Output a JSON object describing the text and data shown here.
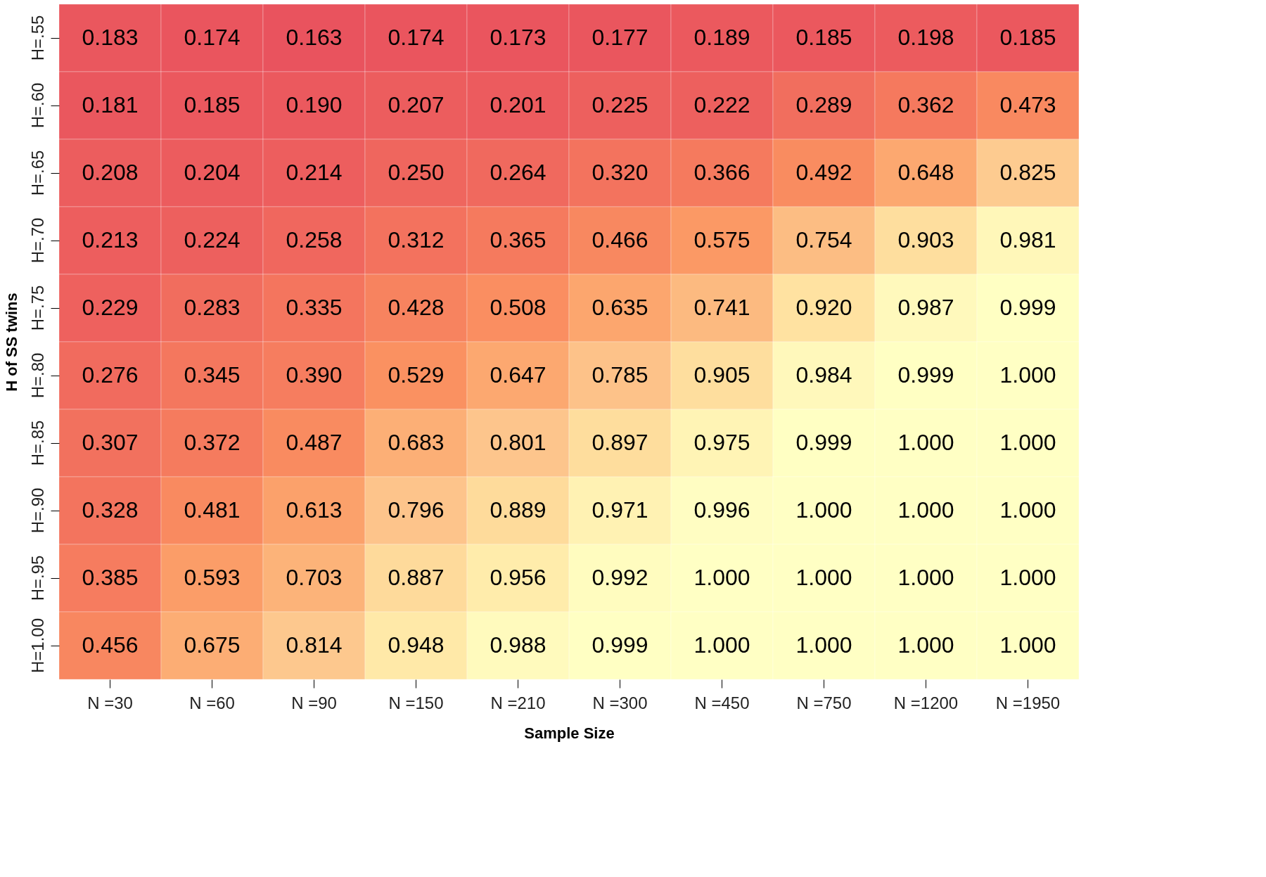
{
  "chart_data": {
    "type": "heatmap",
    "xlabel": "Sample Size",
    "ylabel": "H of SS twins",
    "categories": [
      "N =30",
      "N =60",
      "N =90",
      "N =150",
      "N =210",
      "N =300",
      "N =450",
      "N =750",
      "N =1200",
      "N =1950"
    ],
    "y_categories": [
      "H=.55",
      "H=.60",
      "H=.65",
      "H=.70",
      "H=.75",
      "H=.80",
      "H=.85",
      "H=.90",
      "H=.95",
      "H=1.00"
    ],
    "cells": [
      [
        0.183,
        0.174,
        0.163,
        0.174,
        0.173,
        0.177,
        0.189,
        0.185,
        0.198,
        0.185
      ],
      [
        0.181,
        0.185,
        0.19,
        0.207,
        0.201,
        0.225,
        0.222,
        0.289,
        0.362,
        0.473
      ],
      [
        0.208,
        0.204,
        0.214,
        0.25,
        0.264,
        0.32,
        0.366,
        0.492,
        0.648,
        0.825
      ],
      [
        0.213,
        0.224,
        0.258,
        0.312,
        0.365,
        0.466,
        0.575,
        0.754,
        0.903,
        0.981
      ],
      [
        0.229,
        0.283,
        0.335,
        0.428,
        0.508,
        0.635,
        0.741,
        0.92,
        0.987,
        0.999
      ],
      [
        0.276,
        0.345,
        0.39,
        0.529,
        0.647,
        0.785,
        0.905,
        0.984,
        0.999,
        1.0
      ],
      [
        0.307,
        0.372,
        0.487,
        0.683,
        0.801,
        0.897,
        0.975,
        0.999,
        1.0,
        1.0
      ],
      [
        0.328,
        0.481,
        0.613,
        0.796,
        0.889,
        0.971,
        0.996,
        1.0,
        1.0,
        1.0
      ],
      [
        0.385,
        0.593,
        0.703,
        0.887,
        0.956,
        0.992,
        1.0,
        1.0,
        1.0,
        1.0
      ],
      [
        0.456,
        0.675,
        0.814,
        0.948,
        0.988,
        0.999,
        1.0,
        1.0,
        1.0,
        1.0
      ]
    ],
    "cell_labels": [
      [
        "0.183",
        "0.174",
        "0.163",
        "0.174",
        "0.173",
        "0.177",
        "0.189",
        "0.185",
        "0.198",
        "0.185"
      ],
      [
        "0.181",
        "0.185",
        "0.190",
        "0.207",
        "0.201",
        "0.225",
        "0.222",
        "0.289",
        "0.362",
        "0.473"
      ],
      [
        "0.208",
        "0.204",
        "0.214",
        "0.250",
        "0.264",
        "0.320",
        "0.366",
        "0.492",
        "0.648",
        "0.825"
      ],
      [
        "0.213",
        "0.224",
        "0.258",
        "0.312",
        "0.365",
        "0.466",
        "0.575",
        "0.754",
        "0.903",
        "0.981"
      ],
      [
        "0.229",
        "0.283",
        "0.335",
        "0.428",
        "0.508",
        "0.635",
        "0.741",
        "0.920",
        "0.987",
        "0.999"
      ],
      [
        "0.276",
        "0.345",
        "0.390",
        "0.529",
        "0.647",
        "0.785",
        "0.905",
        "0.984",
        "0.999",
        "1.000"
      ],
      [
        "0.307",
        "0.372",
        "0.487",
        "0.683",
        "0.801",
        "0.897",
        "0.975",
        "0.999",
        "1.000",
        "1.000"
      ],
      [
        "0.328",
        "0.481",
        "0.613",
        "0.796",
        "0.889",
        "0.971",
        "0.996",
        "1.000",
        "1.000",
        "1.000"
      ],
      [
        "0.385",
        "0.593",
        "0.703",
        "0.887",
        "0.956",
        "0.992",
        "1.000",
        "1.000",
        "1.000",
        "1.000"
      ],
      [
        "0.456",
        "0.675",
        "0.814",
        "0.948",
        "0.988",
        "0.999",
        "1.000",
        "1.000",
        "1.000",
        "1.000"
      ]
    ]
  }
}
